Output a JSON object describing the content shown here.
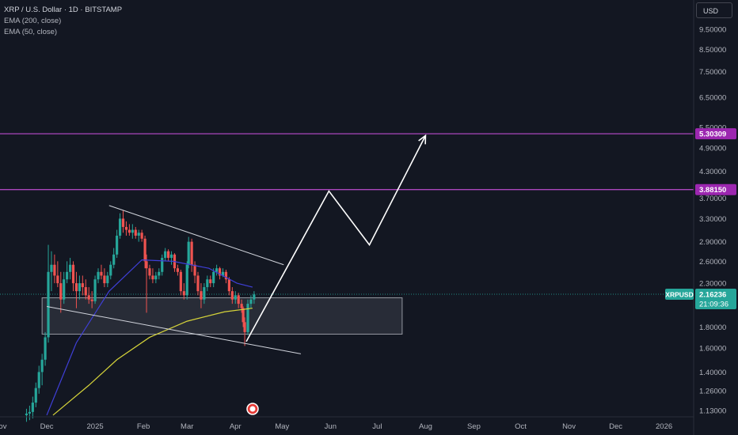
{
  "header": {
    "symbol_title": "XRP / U.S. Dollar · 1D · BITSTAMP",
    "indicators": [
      "EMA (200, close)",
      "EMA (50, close)"
    ],
    "currency": "USD"
  },
  "chart_data": {
    "type": "candlestick",
    "y_scale": "log",
    "ylim": [
      1.09,
      11.2
    ],
    "xlim": [
      "2024-11-01",
      "2026-01-20"
    ],
    "y_ticks": [
      "9.50000",
      "8.50000",
      "7.50000",
      "6.50000",
      "5.50000",
      "4.90000",
      "4.30000",
      "3.70000",
      "3.30000",
      "2.90000",
      "2.60000",
      "2.30000",
      "1.80000",
      "1.60000",
      "1.40000",
      "1.26000",
      "1.13000"
    ],
    "x_ticks": [
      {
        "label": "Nov",
        "date": "2024-11-01"
      },
      {
        "label": "Dec",
        "date": "2024-12-01"
      },
      {
        "label": "2025",
        "date": "2025-01-01"
      },
      {
        "label": "Feb",
        "date": "2025-02-01"
      },
      {
        "label": "Mar",
        "date": "2025-03-01"
      },
      {
        "label": "Apr",
        "date": "2025-04-01"
      },
      {
        "label": "May",
        "date": "2025-05-01"
      },
      {
        "label": "Jun",
        "date": "2025-06-01"
      },
      {
        "label": "Jul",
        "date": "2025-07-01"
      },
      {
        "label": "Aug",
        "date": "2025-08-01"
      },
      {
        "label": "Sep",
        "date": "2025-09-01"
      },
      {
        "label": "Oct",
        "date": "2025-10-01"
      },
      {
        "label": "Nov",
        "date": "2025-11-01"
      },
      {
        "label": "Dec",
        "date": "2025-12-01"
      },
      {
        "label": "2026",
        "date": "2026-01-01"
      }
    ],
    "price_labels": [
      {
        "value": 5.30309,
        "text": "5.30309",
        "color": "#9c27b0"
      },
      {
        "value": 3.8815,
        "text": "3.88150",
        "color": "#9c27b0"
      }
    ],
    "current": {
      "symbol": "XRPUSD",
      "price": "2.16236",
      "price_value": 2.16236,
      "countdown": "21:09:36",
      "color": "#26a69a"
    },
    "resistance_lines": [
      {
        "value": 5.30309,
        "color": "#ab47bc"
      },
      {
        "value": 3.8815,
        "color": "#ab47bc"
      }
    ],
    "zone": {
      "from": "2024-11-28",
      "to": "2025-07-17",
      "top": 2.12,
      "bottom": 1.73
    },
    "channel": {
      "upper": [
        {
          "date": "2025-01-10",
          "value": 3.55
        },
        {
          "date": "2025-05-02",
          "value": 2.55
        }
      ],
      "lower": [
        {
          "date": "2024-12-01",
          "value": 2.02
        },
        {
          "date": "2025-05-13",
          "value": 1.55
        }
      ]
    },
    "projection": [
      {
        "date": "2025-04-08",
        "value": 1.66
      },
      {
        "date": "2025-05-31",
        "value": 3.85
      },
      {
        "date": "2025-06-26",
        "value": 2.85
      },
      {
        "date": "2025-08-01",
        "value": 5.25
      }
    ],
    "ema200": [
      {
        "date": "2024-12-05",
        "value": 1.1
      },
      {
        "date": "2024-12-28",
        "value": 1.3
      },
      {
        "date": "2025-01-15",
        "value": 1.5
      },
      {
        "date": "2025-02-05",
        "value": 1.7
      },
      {
        "date": "2025-03-01",
        "value": 1.86
      },
      {
        "date": "2025-03-25",
        "value": 1.96
      },
      {
        "date": "2025-04-12",
        "value": 2.0
      }
    ],
    "ema50": [
      {
        "date": "2024-12-01",
        "value": 1.1
      },
      {
        "date": "2024-12-20",
        "value": 1.65
      },
      {
        "date": "2025-01-10",
        "value": 2.2
      },
      {
        "date": "2025-01-31",
        "value": 2.62
      },
      {
        "date": "2025-02-20",
        "value": 2.6
      },
      {
        "date": "2025-03-15",
        "value": 2.5
      },
      {
        "date": "2025-04-02",
        "value": 2.3
      },
      {
        "date": "2025-04-12",
        "value": 2.25
      }
    ],
    "candles": [
      {
        "d": "2024-11-18",
        "o": 1.1,
        "h": 1.14,
        "l": 1.06,
        "c": 1.11
      },
      {
        "d": "2024-11-20",
        "o": 1.11,
        "h": 1.16,
        "l": 1.07,
        "c": 1.12
      },
      {
        "d": "2024-11-22",
        "o": 1.12,
        "h": 1.22,
        "l": 1.08,
        "c": 1.18
      },
      {
        "d": "2024-11-24",
        "o": 1.18,
        "h": 1.32,
        "l": 1.15,
        "c": 1.28
      },
      {
        "d": "2024-11-26",
        "o": 1.28,
        "h": 1.45,
        "l": 1.24,
        "c": 1.4
      },
      {
        "d": "2024-11-28",
        "o": 1.4,
        "h": 1.55,
        "l": 1.3,
        "c": 1.5
      },
      {
        "d": "2024-11-30",
        "o": 1.5,
        "h": 1.75,
        "l": 1.45,
        "c": 1.7
      },
      {
        "d": "2024-12-02",
        "o": 1.7,
        "h": 2.85,
        "l": 1.65,
        "c": 2.45
      },
      {
        "d": "2024-12-04",
        "o": 2.45,
        "h": 2.75,
        "l": 2.2,
        "c": 2.55
      },
      {
        "d": "2024-12-06",
        "o": 2.55,
        "h": 2.7,
        "l": 2.3,
        "c": 2.4
      },
      {
        "d": "2024-12-08",
        "o": 2.4,
        "h": 2.6,
        "l": 2.25,
        "c": 2.3
      },
      {
        "d": "2024-12-10",
        "o": 2.3,
        "h": 2.45,
        "l": 1.95,
        "c": 2.1
      },
      {
        "d": "2024-12-12",
        "o": 2.1,
        "h": 2.45,
        "l": 2.05,
        "c": 2.35
      },
      {
        "d": "2024-12-14",
        "o": 2.35,
        "h": 2.6,
        "l": 2.3,
        "c": 2.45
      },
      {
        "d": "2024-12-16",
        "o": 2.45,
        "h": 2.65,
        "l": 2.35,
        "c": 2.55
      },
      {
        "d": "2024-12-18",
        "o": 2.55,
        "h": 2.6,
        "l": 2.2,
        "c": 2.3
      },
      {
        "d": "2024-12-20",
        "o": 2.3,
        "h": 2.45,
        "l": 2.0,
        "c": 2.2
      },
      {
        "d": "2024-12-22",
        "o": 2.2,
        "h": 2.4,
        "l": 2.1,
        "c": 2.3
      },
      {
        "d": "2024-12-24",
        "o": 2.3,
        "h": 2.4,
        "l": 2.15,
        "c": 2.25
      },
      {
        "d": "2024-12-26",
        "o": 2.25,
        "h": 2.35,
        "l": 2.1,
        "c": 2.15
      },
      {
        "d": "2024-12-28",
        "o": 2.15,
        "h": 2.25,
        "l": 2.05,
        "c": 2.1
      },
      {
        "d": "2024-12-30",
        "o": 2.1,
        "h": 2.2,
        "l": 2.0,
        "c": 2.08
      },
      {
        "d": "2025-01-01",
        "o": 2.08,
        "h": 2.4,
        "l": 2.05,
        "c": 2.35
      },
      {
        "d": "2025-01-03",
        "o": 2.35,
        "h": 2.5,
        "l": 2.3,
        "c": 2.45
      },
      {
        "d": "2025-01-05",
        "o": 2.45,
        "h": 2.55,
        "l": 2.35,
        "c": 2.4
      },
      {
        "d": "2025-01-07",
        "o": 2.4,
        "h": 2.5,
        "l": 2.25,
        "c": 2.3
      },
      {
        "d": "2025-01-09",
        "o": 2.3,
        "h": 2.45,
        "l": 2.25,
        "c": 2.4
      },
      {
        "d": "2025-01-11",
        "o": 2.4,
        "h": 2.6,
        "l": 2.35,
        "c": 2.55
      },
      {
        "d": "2025-01-13",
        "o": 2.55,
        "h": 2.8,
        "l": 2.5,
        "c": 2.7
      },
      {
        "d": "2025-01-15",
        "o": 2.7,
        "h": 3.1,
        "l": 2.65,
        "c": 3.0
      },
      {
        "d": "2025-01-17",
        "o": 3.0,
        "h": 3.4,
        "l": 2.95,
        "c": 3.3
      },
      {
        "d": "2025-01-19",
        "o": 3.3,
        "h": 3.45,
        "l": 3.05,
        "c": 3.15
      },
      {
        "d": "2025-01-21",
        "o": 3.15,
        "h": 3.25,
        "l": 3.0,
        "c": 3.1
      },
      {
        "d": "2025-01-23",
        "o": 3.1,
        "h": 3.2,
        "l": 3.0,
        "c": 3.05
      },
      {
        "d": "2025-01-25",
        "o": 3.05,
        "h": 3.2,
        "l": 2.95,
        "c": 3.1
      },
      {
        "d": "2025-01-27",
        "o": 3.1,
        "h": 3.15,
        "l": 2.95,
        "c": 3.0
      },
      {
        "d": "2025-01-29",
        "o": 3.0,
        "h": 3.1,
        "l": 2.9,
        "c": 3.05
      },
      {
        "d": "2025-01-31",
        "o": 3.05,
        "h": 3.1,
        "l": 2.9,
        "c": 2.95
      },
      {
        "d": "2025-02-02",
        "o": 2.95,
        "h": 3.0,
        "l": 2.5,
        "c": 2.6
      },
      {
        "d": "2025-02-03",
        "o": 2.6,
        "h": 2.7,
        "l": 1.95,
        "c": 2.5
      },
      {
        "d": "2025-02-05",
        "o": 2.5,
        "h": 2.55,
        "l": 2.35,
        "c": 2.4
      },
      {
        "d": "2025-02-07",
        "o": 2.4,
        "h": 2.5,
        "l": 2.3,
        "c": 2.35
      },
      {
        "d": "2025-02-09",
        "o": 2.35,
        "h": 2.45,
        "l": 2.3,
        "c": 2.4
      },
      {
        "d": "2025-02-11",
        "o": 2.4,
        "h": 2.5,
        "l": 2.35,
        "c": 2.45
      },
      {
        "d": "2025-02-13",
        "o": 2.45,
        "h": 2.7,
        "l": 2.4,
        "c": 2.65
      },
      {
        "d": "2025-02-15",
        "o": 2.65,
        "h": 2.8,
        "l": 2.6,
        "c": 2.75
      },
      {
        "d": "2025-02-17",
        "o": 2.75,
        "h": 2.78,
        "l": 2.6,
        "c": 2.65
      },
      {
        "d": "2025-02-19",
        "o": 2.65,
        "h": 2.75,
        "l": 2.55,
        "c": 2.7
      },
      {
        "d": "2025-02-21",
        "o": 2.7,
        "h": 2.72,
        "l": 2.45,
        "c": 2.5
      },
      {
        "d": "2025-02-23",
        "o": 2.5,
        "h": 2.55,
        "l": 2.4,
        "c": 2.45
      },
      {
        "d": "2025-02-25",
        "o": 2.45,
        "h": 2.48,
        "l": 2.15,
        "c": 2.2
      },
      {
        "d": "2025-02-27",
        "o": 2.2,
        "h": 2.3,
        "l": 2.1,
        "c": 2.15
      },
      {
        "d": "2025-03-01",
        "o": 2.15,
        "h": 2.6,
        "l": 2.1,
        "c": 2.55
      },
      {
        "d": "2025-03-02",
        "o": 2.55,
        "h": 2.98,
        "l": 2.5,
        "c": 2.9
      },
      {
        "d": "2025-03-04",
        "o": 2.9,
        "h": 2.95,
        "l": 2.45,
        "c": 2.55
      },
      {
        "d": "2025-03-06",
        "o": 2.55,
        "h": 2.6,
        "l": 2.3,
        "c": 2.4
      },
      {
        "d": "2025-03-08",
        "o": 2.4,
        "h": 2.45,
        "l": 2.15,
        "c": 2.2
      },
      {
        "d": "2025-03-10",
        "o": 2.2,
        "h": 2.3,
        "l": 2.0,
        "c": 2.1
      },
      {
        "d": "2025-03-12",
        "o": 2.1,
        "h": 2.3,
        "l": 2.05,
        "c": 2.25
      },
      {
        "d": "2025-03-14",
        "o": 2.25,
        "h": 2.4,
        "l": 2.2,
        "c": 2.35
      },
      {
        "d": "2025-03-16",
        "o": 2.35,
        "h": 2.4,
        "l": 2.25,
        "c": 2.3
      },
      {
        "d": "2025-03-18",
        "o": 2.3,
        "h": 2.5,
        "l": 2.25,
        "c": 2.45
      },
      {
        "d": "2025-03-20",
        "o": 2.45,
        "h": 2.55,
        "l": 2.4,
        "c": 2.5
      },
      {
        "d": "2025-03-22",
        "o": 2.5,
        "h": 2.52,
        "l": 2.35,
        "c": 2.4
      },
      {
        "d": "2025-03-24",
        "o": 2.4,
        "h": 2.5,
        "l": 2.38,
        "c": 2.45
      },
      {
        "d": "2025-03-26",
        "o": 2.45,
        "h": 2.48,
        "l": 2.3,
        "c": 2.35
      },
      {
        "d": "2025-03-28",
        "o": 2.35,
        "h": 2.38,
        "l": 2.15,
        "c": 2.2
      },
      {
        "d": "2025-03-30",
        "o": 2.2,
        "h": 2.25,
        "l": 2.05,
        "c": 2.1
      },
      {
        "d": "2025-04-01",
        "o": 2.1,
        "h": 2.2,
        "l": 2.05,
        "c": 2.15
      },
      {
        "d": "2025-04-03",
        "o": 2.15,
        "h": 2.18,
        "l": 2.0,
        "c": 2.05
      },
      {
        "d": "2025-04-05",
        "o": 2.05,
        "h": 2.1,
        "l": 1.95,
        "c": 2.0
      },
      {
        "d": "2025-04-06",
        "o": 2.0,
        "h": 2.02,
        "l": 1.8,
        "c": 1.85
      },
      {
        "d": "2025-04-07",
        "o": 1.85,
        "h": 1.9,
        "l": 1.62,
        "c": 1.75
      },
      {
        "d": "2025-04-09",
        "o": 1.75,
        "h": 2.1,
        "l": 1.72,
        "c": 2.05
      },
      {
        "d": "2025-04-11",
        "o": 2.05,
        "h": 2.15,
        "l": 2.0,
        "c": 2.1
      },
      {
        "d": "2025-04-13",
        "o": 2.1,
        "h": 2.2,
        "l": 2.05,
        "c": 2.16
      }
    ]
  }
}
